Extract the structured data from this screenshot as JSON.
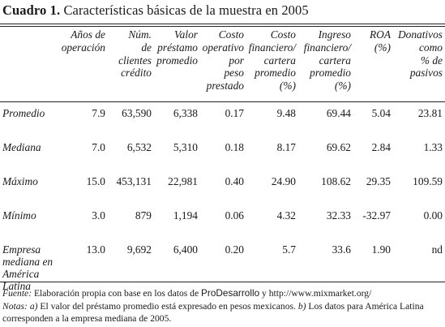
{
  "title": {
    "number": "Cuadro 1.",
    "text": "Características básicas de la muestra en 2005"
  },
  "table": {
    "columns": [
      "Años de operación",
      "Núm. de clientes crédito",
      "Valor préstamo promedio",
      "Costo operativo por peso prestado",
      "Costo financiero/ cartera promedio (%)",
      "Ingreso financiero/ cartera promedio (%)",
      "ROA (%)",
      "Donativos como % de pasivos"
    ],
    "column_lines": [
      [
        "Años de",
        "operación"
      ],
      [
        "Núm.",
        "de",
        "clientes",
        "crédito"
      ],
      [
        "Valor",
        "préstamo",
        "promedio"
      ],
      [
        "Costo",
        "operativo",
        "por",
        "peso",
        "prestado"
      ],
      [
        "Costo",
        "financiero/",
        "cartera",
        "promedio",
        "(%)"
      ],
      [
        "Ingreso",
        "financiero/",
        "cartera",
        "promedio",
        "(%)"
      ],
      [
        "ROA",
        "(%)"
      ],
      [
        "Donativos",
        "como",
        "% de",
        "pasivos"
      ]
    ],
    "rows": [
      {
        "label": [
          "Promedio"
        ],
        "values": [
          "7.9",
          "63,590",
          "6,338",
          "0.17",
          "9.48",
          "69.44",
          "5.04",
          "23.81"
        ]
      },
      {
        "label": [
          "Mediana"
        ],
        "values": [
          "7.0",
          "6,532",
          "5,310",
          "0.18",
          "8.17",
          "69.62",
          "2.84",
          "1.33"
        ]
      },
      {
        "label": [
          "Máximo"
        ],
        "values": [
          "15.0",
          "453,131",
          "22,981",
          "0.40",
          "24.90",
          "108.62",
          "29.35",
          "109.59"
        ]
      },
      {
        "label": [
          "Mínimo"
        ],
        "values": [
          "3.0",
          "879",
          "1,194",
          "0.06",
          "4.32",
          "32.33",
          "-32.97",
          "0.00"
        ]
      },
      {
        "label": [
          "Empresa",
          "mediana en",
          "América Latina"
        ],
        "values": [
          "13.0",
          "9,692",
          "6,400",
          "0.20",
          "5.7",
          "33.6",
          "1.90",
          "nd"
        ]
      }
    ]
  },
  "footnotes": {
    "source_label": "Fuente:",
    "source_text_before": " Elaboración propia con base en los datos de ",
    "source_brand": "ProDesarrollo",
    "source_text_after": " y http://www.mixmarket.org/",
    "notes_label": "Notas:",
    "note_a_label": "a)",
    "note_a_text": " El valor del préstamo promedio está expresado en pesos mexicanos. ",
    "note_b_label": "b)",
    "note_b_text": " Los datos para América Latina corresponden a la empresa mediana de 2005."
  }
}
